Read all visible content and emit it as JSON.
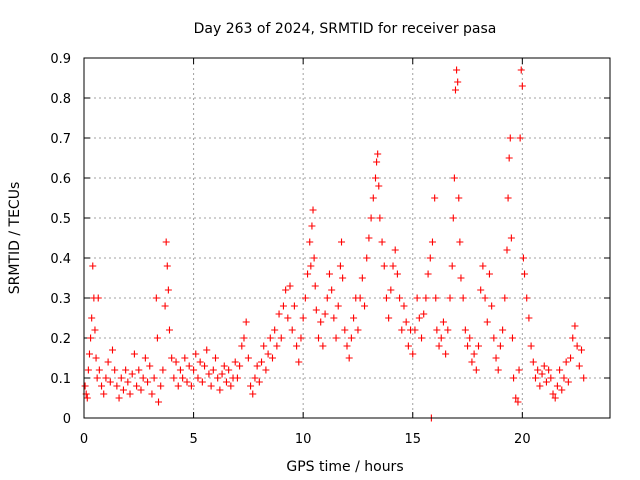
{
  "chart_data": {
    "type": "scatter",
    "title": "Day 263 of 2024, SRMTID for receiver pasa",
    "xlabel": "GPS time / hours",
    "ylabel": "SRMTID / TECUs",
    "xlim": [
      0,
      24
    ],
    "ylim": [
      0,
      0.9
    ],
    "xticks": [
      0,
      5,
      10,
      15,
      20
    ],
    "xtick_labels": [
      "0",
      "5",
      "10",
      "15",
      "20"
    ],
    "yticks": [
      0,
      0.1,
      0.2,
      0.3,
      0.4,
      0.5,
      0.6,
      0.7,
      0.8,
      0.9
    ],
    "ytick_labels": [
      "0",
      "0.1",
      "0.2",
      "0.3",
      "0.4",
      "0.5",
      "0.6",
      "0.7",
      "0.8",
      "0.9"
    ],
    "grid": true,
    "marker": "+",
    "marker_color": "#ff0000",
    "series": [
      {
        "name": "SRMTID",
        "points": [
          [
            0.05,
            0.08
          ],
          [
            0.1,
            0.06
          ],
          [
            0.15,
            0.05
          ],
          [
            0.2,
            0.12
          ],
          [
            0.25,
            0.16
          ],
          [
            0.3,
            0.2
          ],
          [
            0.35,
            0.25
          ],
          [
            0.4,
            0.38
          ],
          [
            0.45,
            0.3
          ],
          [
            0.5,
            0.22
          ],
          [
            0.55,
            0.15
          ],
          [
            0.6,
            0.1
          ],
          [
            0.65,
            0.3
          ],
          [
            0.7,
            0.12
          ],
          [
            0.8,
            0.08
          ],
          [
            0.9,
            0.06
          ],
          [
            1.0,
            0.1
          ],
          [
            1.1,
            0.14
          ],
          [
            1.2,
            0.09
          ],
          [
            1.3,
            0.17
          ],
          [
            1.4,
            0.12
          ],
          [
            1.5,
            0.08
          ],
          [
            1.6,
            0.05
          ],
          [
            1.7,
            0.1
          ],
          [
            1.8,
            0.07
          ],
          [
            1.9,
            0.12
          ],
          [
            2.0,
            0.09
          ],
          [
            2.1,
            0.06
          ],
          [
            2.2,
            0.11
          ],
          [
            2.3,
            0.16
          ],
          [
            2.4,
            0.08
          ],
          [
            2.5,
            0.12
          ],
          [
            2.6,
            0.07
          ],
          [
            2.7,
            0.1
          ],
          [
            2.8,
            0.15
          ],
          [
            2.9,
            0.09
          ],
          [
            3.0,
            0.13
          ],
          [
            3.1,
            0.06
          ],
          [
            3.2,
            0.1
          ],
          [
            3.3,
            0.3
          ],
          [
            3.35,
            0.2
          ],
          [
            3.4,
            0.04
          ],
          [
            3.5,
            0.08
          ],
          [
            3.6,
            0.12
          ],
          [
            3.7,
            0.28
          ],
          [
            3.75,
            0.44
          ],
          [
            3.8,
            0.38
          ],
          [
            3.85,
            0.32
          ],
          [
            3.9,
            0.22
          ],
          [
            4.0,
            0.15
          ],
          [
            4.1,
            0.1
          ],
          [
            4.2,
            0.14
          ],
          [
            4.3,
            0.08
          ],
          [
            4.4,
            0.12
          ],
          [
            4.5,
            0.1
          ],
          [
            4.6,
            0.15
          ],
          [
            4.7,
            0.09
          ],
          [
            4.8,
            0.13
          ],
          [
            4.9,
            0.08
          ],
          [
            5.0,
            0.12
          ],
          [
            5.1,
            0.16
          ],
          [
            5.2,
            0.1
          ],
          [
            5.3,
            0.14
          ],
          [
            5.4,
            0.09
          ],
          [
            5.5,
            0.13
          ],
          [
            5.6,
            0.17
          ],
          [
            5.7,
            0.11
          ],
          [
            5.8,
            0.08
          ],
          [
            5.9,
            0.12
          ],
          [
            6.0,
            0.15
          ],
          [
            6.1,
            0.1
          ],
          [
            6.2,
            0.07
          ],
          [
            6.3,
            0.11
          ],
          [
            6.4,
            0.13
          ],
          [
            6.5,
            0.09
          ],
          [
            6.6,
            0.12
          ],
          [
            6.7,
            0.08
          ],
          [
            6.8,
            0.1
          ],
          [
            6.9,
            0.14
          ],
          [
            7.0,
            0.1
          ],
          [
            7.1,
            0.13
          ],
          [
            7.2,
            0.18
          ],
          [
            7.3,
            0.2
          ],
          [
            7.4,
            0.24
          ],
          [
            7.5,
            0.15
          ],
          [
            7.6,
            0.08
          ],
          [
            7.7,
            0.06
          ],
          [
            7.8,
            0.1
          ],
          [
            7.9,
            0.13
          ],
          [
            8.0,
            0.09
          ],
          [
            8.1,
            0.14
          ],
          [
            8.2,
            0.18
          ],
          [
            8.3,
            0.12
          ],
          [
            8.4,
            0.16
          ],
          [
            8.5,
            0.2
          ],
          [
            8.6,
            0.15
          ],
          [
            8.7,
            0.22
          ],
          [
            8.8,
            0.18
          ],
          [
            8.9,
            0.26
          ],
          [
            9.0,
            0.2
          ],
          [
            9.1,
            0.28
          ],
          [
            9.2,
            0.32
          ],
          [
            9.3,
            0.25
          ],
          [
            9.4,
            0.33
          ],
          [
            9.5,
            0.22
          ],
          [
            9.6,
            0.28
          ],
          [
            9.7,
            0.18
          ],
          [
            9.8,
            0.14
          ],
          [
            9.9,
            0.2
          ],
          [
            10.0,
            0.25
          ],
          [
            10.1,
            0.3
          ],
          [
            10.2,
            0.36
          ],
          [
            10.3,
            0.44
          ],
          [
            10.35,
            0.38
          ],
          [
            10.4,
            0.48
          ],
          [
            10.45,
            0.52
          ],
          [
            10.5,
            0.4
          ],
          [
            10.55,
            0.33
          ],
          [
            10.6,
            0.27
          ],
          [
            10.7,
            0.2
          ],
          [
            10.8,
            0.24
          ],
          [
            10.9,
            0.18
          ],
          [
            11.0,
            0.26
          ],
          [
            11.1,
            0.3
          ],
          [
            11.2,
            0.36
          ],
          [
            11.3,
            0.32
          ],
          [
            11.4,
            0.25
          ],
          [
            11.5,
            0.2
          ],
          [
            11.6,
            0.28
          ],
          [
            11.7,
            0.38
          ],
          [
            11.75,
            0.44
          ],
          [
            11.8,
            0.35
          ],
          [
            11.9,
            0.22
          ],
          [
            12.0,
            0.18
          ],
          [
            12.1,
            0.15
          ],
          [
            12.2,
            0.2
          ],
          [
            12.3,
            0.25
          ],
          [
            12.4,
            0.3
          ],
          [
            12.5,
            0.22
          ],
          [
            12.6,
            0.3
          ],
          [
            12.7,
            0.35
          ],
          [
            12.8,
            0.28
          ],
          [
            12.9,
            0.4
          ],
          [
            13.0,
            0.45
          ],
          [
            13.1,
            0.5
          ],
          [
            13.2,
            0.55
          ],
          [
            13.3,
            0.6
          ],
          [
            13.35,
            0.64
          ],
          [
            13.4,
            0.66
          ],
          [
            13.45,
            0.58
          ],
          [
            13.5,
            0.5
          ],
          [
            13.6,
            0.44
          ],
          [
            13.7,
            0.38
          ],
          [
            13.8,
            0.3
          ],
          [
            13.9,
            0.25
          ],
          [
            14.0,
            0.32
          ],
          [
            14.1,
            0.38
          ],
          [
            14.2,
            0.42
          ],
          [
            14.3,
            0.36
          ],
          [
            14.4,
            0.3
          ],
          [
            14.5,
            0.22
          ],
          [
            14.6,
            0.28
          ],
          [
            14.7,
            0.24
          ],
          [
            14.8,
            0.18
          ],
          [
            14.9,
            0.22
          ],
          [
            15.0,
            0.16
          ],
          [
            15.1,
            0.22
          ],
          [
            15.2,
            0.3
          ],
          [
            15.3,
            0.25
          ],
          [
            15.4,
            0.2
          ],
          [
            15.5,
            0.26
          ],
          [
            15.6,
            0.3
          ],
          [
            15.7,
            0.36
          ],
          [
            15.8,
            0.4
          ],
          [
            15.85,
            0.0
          ],
          [
            15.9,
            0.44
          ],
          [
            16.0,
            0.55
          ],
          [
            16.05,
            0.3
          ],
          [
            16.1,
            0.22
          ],
          [
            16.2,
            0.18
          ],
          [
            16.3,
            0.2
          ],
          [
            16.4,
            0.24
          ],
          [
            16.5,
            0.16
          ],
          [
            16.6,
            0.22
          ],
          [
            16.7,
            0.3
          ],
          [
            16.8,
            0.38
          ],
          [
            16.85,
            0.5
          ],
          [
            16.9,
            0.6
          ],
          [
            16.95,
            0.82
          ],
          [
            17.0,
            0.87
          ],
          [
            17.05,
            0.84
          ],
          [
            17.1,
            0.55
          ],
          [
            17.15,
            0.44
          ],
          [
            17.2,
            0.35
          ],
          [
            17.3,
            0.3
          ],
          [
            17.4,
            0.22
          ],
          [
            17.5,
            0.18
          ],
          [
            17.6,
            0.2
          ],
          [
            17.7,
            0.14
          ],
          [
            17.8,
            0.16
          ],
          [
            17.9,
            0.12
          ],
          [
            18.0,
            0.18
          ],
          [
            18.1,
            0.32
          ],
          [
            18.2,
            0.38
          ],
          [
            18.3,
            0.3
          ],
          [
            18.4,
            0.24
          ],
          [
            18.5,
            0.36
          ],
          [
            18.6,
            0.28
          ],
          [
            18.7,
            0.2
          ],
          [
            18.8,
            0.15
          ],
          [
            18.9,
            0.12
          ],
          [
            19.0,
            0.18
          ],
          [
            19.1,
            0.22
          ],
          [
            19.2,
            0.3
          ],
          [
            19.3,
            0.42
          ],
          [
            19.35,
            0.55
          ],
          [
            19.4,
            0.65
          ],
          [
            19.45,
            0.7
          ],
          [
            19.5,
            0.45
          ],
          [
            19.55,
            0.2
          ],
          [
            19.6,
            0.1
          ],
          [
            19.7,
            0.05
          ],
          [
            19.8,
            0.04
          ],
          [
            19.85,
            0.12
          ],
          [
            19.9,
            0.7
          ],
          [
            19.95,
            0.87
          ],
          [
            20.0,
            0.83
          ],
          [
            20.05,
            0.4
          ],
          [
            20.1,
            0.36
          ],
          [
            20.2,
            0.3
          ],
          [
            20.3,
            0.25
          ],
          [
            20.4,
            0.18
          ],
          [
            20.5,
            0.14
          ],
          [
            20.6,
            0.1
          ],
          [
            20.7,
            0.12
          ],
          [
            20.8,
            0.08
          ],
          [
            20.9,
            0.11
          ],
          [
            21.0,
            0.13
          ],
          [
            21.1,
            0.09
          ],
          [
            21.2,
            0.12
          ],
          [
            21.3,
            0.1
          ],
          [
            21.4,
            0.06
          ],
          [
            21.5,
            0.05
          ],
          [
            21.6,
            0.08
          ],
          [
            21.7,
            0.12
          ],
          [
            21.8,
            0.07
          ],
          [
            21.9,
            0.1
          ],
          [
            22.0,
            0.14
          ],
          [
            22.1,
            0.09
          ],
          [
            22.2,
            0.15
          ],
          [
            22.3,
            0.2
          ],
          [
            22.4,
            0.23
          ],
          [
            22.5,
            0.18
          ],
          [
            22.6,
            0.13
          ],
          [
            22.7,
            0.17
          ],
          [
            22.8,
            0.1
          ]
        ]
      }
    ]
  }
}
